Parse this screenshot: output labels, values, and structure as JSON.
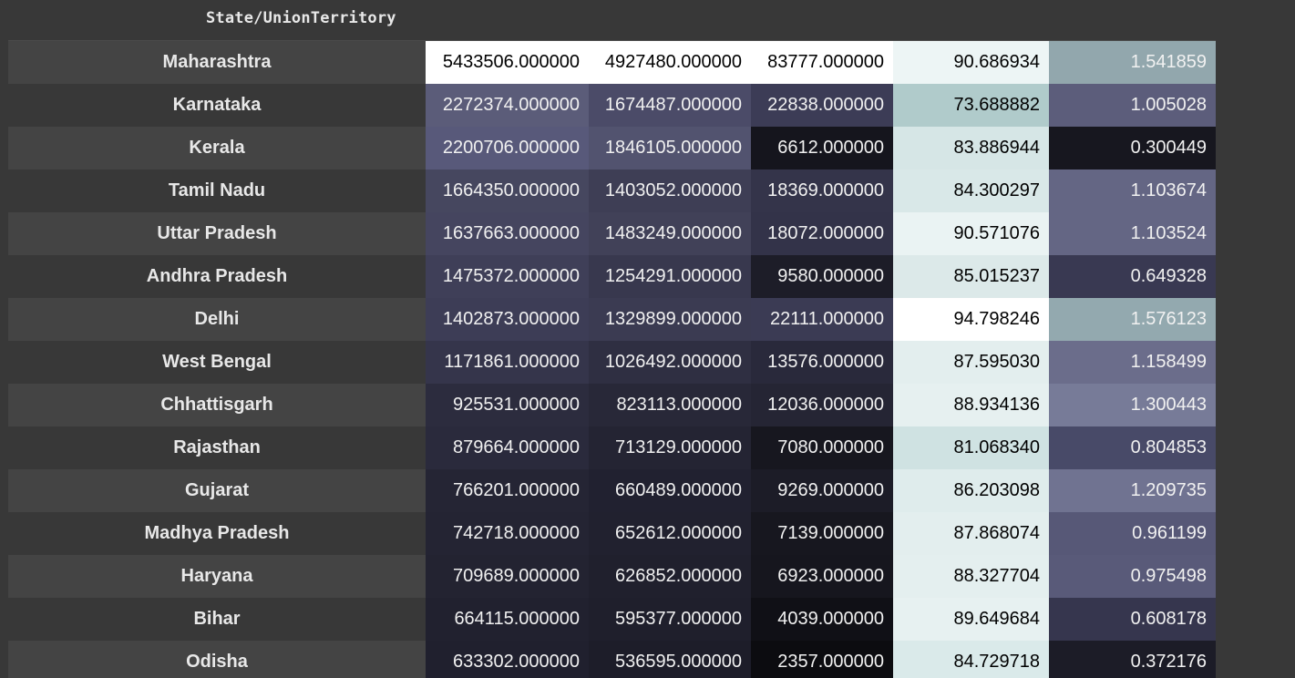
{
  "table": {
    "index_header": "State/UnionTerritory",
    "rows": [
      {
        "state": "Maharashtra",
        "cells": [
          {
            "text": "5433506.000000",
            "bg": "#ffffff",
            "fg": "#000000"
          },
          {
            "text": "4927480.000000",
            "bg": "#ffffff",
            "fg": "#000000"
          },
          {
            "text": "83777.000000",
            "bg": "#ffffff",
            "fg": "#000000"
          },
          {
            "text": "90.686934",
            "bg": "#edf5f5",
            "fg": "#000000"
          },
          {
            "text": "1.541859",
            "bg": "#92a7ad",
            "fg": "#f1f1f1"
          }
        ]
      },
      {
        "state": "Karnataka",
        "cells": [
          {
            "text": "2272374.000000",
            "bg": "#5b5c79",
            "fg": "#f1f1f1"
          },
          {
            "text": "1674487.000000",
            "bg": "#4b4b68",
            "fg": "#f1f1f1"
          },
          {
            "text": "22838.000000",
            "bg": "#3c3c56",
            "fg": "#f1f1f1"
          },
          {
            "text": "73.688882",
            "bg": "#b0cbcb",
            "fg": "#000000"
          },
          {
            "text": "1.005028",
            "bg": "#5c5d7b",
            "fg": "#f1f1f1"
          }
        ]
      },
      {
        "state": "Kerala",
        "cells": [
          {
            "text": "2200706.000000",
            "bg": "#58597a",
            "fg": "#f1f1f1"
          },
          {
            "text": "1846105.000000",
            "bg": "#52536f",
            "fg": "#f1f1f1"
          },
          {
            "text": "6612.000000",
            "bg": "#15151d",
            "fg": "#f1f1f1"
          },
          {
            "text": "83.886944",
            "bg": "#d6e6e6",
            "fg": "#000000"
          },
          {
            "text": "0.300449",
            "bg": "#17171f",
            "fg": "#f1f1f1"
          }
        ]
      },
      {
        "state": "Tamil Nadu",
        "cells": [
          {
            "text": "1664350.000000",
            "bg": "#46475f",
            "fg": "#f1f1f1"
          },
          {
            "text": "1403052.000000",
            "bg": "#3e3e55",
            "fg": "#f1f1f1"
          },
          {
            "text": "18369.000000",
            "bg": "#34344a",
            "fg": "#f1f1f1"
          },
          {
            "text": "84.300297",
            "bg": "#d9e8e8",
            "fg": "#000000"
          },
          {
            "text": "1.103674",
            "bg": "#646684",
            "fg": "#f1f1f1"
          }
        ]
      },
      {
        "state": "Uttar Pradesh",
        "cells": [
          {
            "text": "1637663.000000",
            "bg": "#45455f",
            "fg": "#f1f1f1"
          },
          {
            "text": "1483249.000000",
            "bg": "#414158",
            "fg": "#f1f1f1"
          },
          {
            "text": "18072.000000",
            "bg": "#333349",
            "fg": "#f1f1f1"
          },
          {
            "text": "90.571076",
            "bg": "#eaf3f3",
            "fg": "#000000"
          },
          {
            "text": "1.103524",
            "bg": "#646684",
            "fg": "#f1f1f1"
          }
        ]
      },
      {
        "state": "Andhra Pradesh",
        "cells": [
          {
            "text": "1475372.000000",
            "bg": "#3f3f58",
            "fg": "#f1f1f1"
          },
          {
            "text": "1254291.000000",
            "bg": "#38384e",
            "fg": "#f1f1f1"
          },
          {
            "text": "9580.000000",
            "bg": "#1d1d28",
            "fg": "#f1f1f1"
          },
          {
            "text": "85.015237",
            "bg": "#dce9e9",
            "fg": "#000000"
          },
          {
            "text": "0.649328",
            "bg": "#393952",
            "fg": "#f1f1f1"
          }
        ]
      },
      {
        "state": "Delhi",
        "cells": [
          {
            "text": "1402873.000000",
            "bg": "#3d3d56",
            "fg": "#f1f1f1"
          },
          {
            "text": "1329899.000000",
            "bg": "#3b3b52",
            "fg": "#f1f1f1"
          },
          {
            "text": "22111.000000",
            "bg": "#3b3b54",
            "fg": "#f1f1f1"
          },
          {
            "text": "94.798246",
            "bg": "#ffffff",
            "fg": "#000000"
          },
          {
            "text": "1.576123",
            "bg": "#93a9af",
            "fg": "#f1f1f1"
          }
        ]
      },
      {
        "state": "West Bengal",
        "cells": [
          {
            "text": "1171861.000000",
            "bg": "#35354b",
            "fg": "#f1f1f1"
          },
          {
            "text": "1026492.000000",
            "bg": "#2f2f42",
            "fg": "#f1f1f1"
          },
          {
            "text": "13576.000000",
            "bg": "#29293b",
            "fg": "#f1f1f1"
          },
          {
            "text": "87.595030",
            "bg": "#e3eeee",
            "fg": "#000000"
          },
          {
            "text": "1.158499",
            "bg": "#6b6d8b",
            "fg": "#f1f1f1"
          }
        ]
      },
      {
        "state": "Chhattisgarh",
        "cells": [
          {
            "text": "925531.000000",
            "bg": "#2c2c3e",
            "fg": "#f1f1f1"
          },
          {
            "text": "823113.000000",
            "bg": "#282838",
            "fg": "#f1f1f1"
          },
          {
            "text": "12036.000000",
            "bg": "#252534",
            "fg": "#f1f1f1"
          },
          {
            "text": "88.934136",
            "bg": "#e6f0f0",
            "fg": "#000000"
          },
          {
            "text": "1.300443",
            "bg": "#777b98",
            "fg": "#f1f1f1"
          }
        ]
      },
      {
        "state": "Rajasthan",
        "cells": [
          {
            "text": "879664.000000",
            "bg": "#2a2a3c",
            "fg": "#f1f1f1"
          },
          {
            "text": "713129.000000",
            "bg": "#242433",
            "fg": "#f1f1f1"
          },
          {
            "text": "7080.000000",
            "bg": "#17171f",
            "fg": "#f1f1f1"
          },
          {
            "text": "81.068340",
            "bg": "#cfe2e2",
            "fg": "#000000"
          },
          {
            "text": "0.804853",
            "bg": "#484a68",
            "fg": "#f1f1f1"
          }
        ]
      },
      {
        "state": "Gujarat",
        "cells": [
          {
            "text": "766201.000000",
            "bg": "#252534",
            "fg": "#f1f1f1"
          },
          {
            "text": "660489.000000",
            "bg": "#212130",
            "fg": "#f1f1f1"
          },
          {
            "text": "9269.000000",
            "bg": "#1c1c27",
            "fg": "#f1f1f1"
          },
          {
            "text": "86.203098",
            "bg": "#dfecec",
            "fg": "#000000"
          },
          {
            "text": "1.209735",
            "bg": "#707391",
            "fg": "#f1f1f1"
          }
        ]
      },
      {
        "state": "Madhya Pradesh",
        "cells": [
          {
            "text": "742718.000000",
            "bg": "#242433",
            "fg": "#f1f1f1"
          },
          {
            "text": "652612.000000",
            "bg": "#21212f",
            "fg": "#f1f1f1"
          },
          {
            "text": "7139.000000",
            "bg": "#17171f",
            "fg": "#f1f1f1"
          },
          {
            "text": "87.868074",
            "bg": "#e3eeee",
            "fg": "#000000"
          },
          {
            "text": "0.961199",
            "bg": "#575877",
            "fg": "#f1f1f1"
          }
        ]
      },
      {
        "state": "Haryana",
        "cells": [
          {
            "text": "709689.000000",
            "bg": "#232331",
            "fg": "#f1f1f1"
          },
          {
            "text": "626852.000000",
            "bg": "#20202d",
            "fg": "#f1f1f1"
          },
          {
            "text": "6923.000000",
            "bg": "#16161e",
            "fg": "#f1f1f1"
          },
          {
            "text": "88.327704",
            "bg": "#e4efef",
            "fg": "#000000"
          },
          {
            "text": "0.975498",
            "bg": "#595a79",
            "fg": "#f1f1f1"
          }
        ]
      },
      {
        "state": "Bihar",
        "cells": [
          {
            "text": "664115.000000",
            "bg": "#21212f",
            "fg": "#f1f1f1"
          },
          {
            "text": "595377.000000",
            "bg": "#1f1f2c",
            "fg": "#f1f1f1"
          },
          {
            "text": "4039.000000",
            "bg": "#101016",
            "fg": "#f1f1f1"
          },
          {
            "text": "89.649684",
            "bg": "#e7f1f1",
            "fg": "#000000"
          },
          {
            "text": "0.608178",
            "bg": "#36364e",
            "fg": "#f1f1f1"
          }
        ]
      },
      {
        "state": "Odisha",
        "cells": [
          {
            "text": "633302.000000",
            "bg": "#20202e",
            "fg": "#f1f1f1"
          },
          {
            "text": "536595.000000",
            "bg": "#1d1d29",
            "fg": "#f1f1f1"
          },
          {
            "text": "2357.000000",
            "bg": "#0c0c10",
            "fg": "#f1f1f1"
          },
          {
            "text": "84.729718",
            "bg": "#daeaea",
            "fg": "#000000"
          },
          {
            "text": "0.372176",
            "bg": "#1c1c27",
            "fg": "#f1f1f1"
          }
        ]
      }
    ]
  }
}
